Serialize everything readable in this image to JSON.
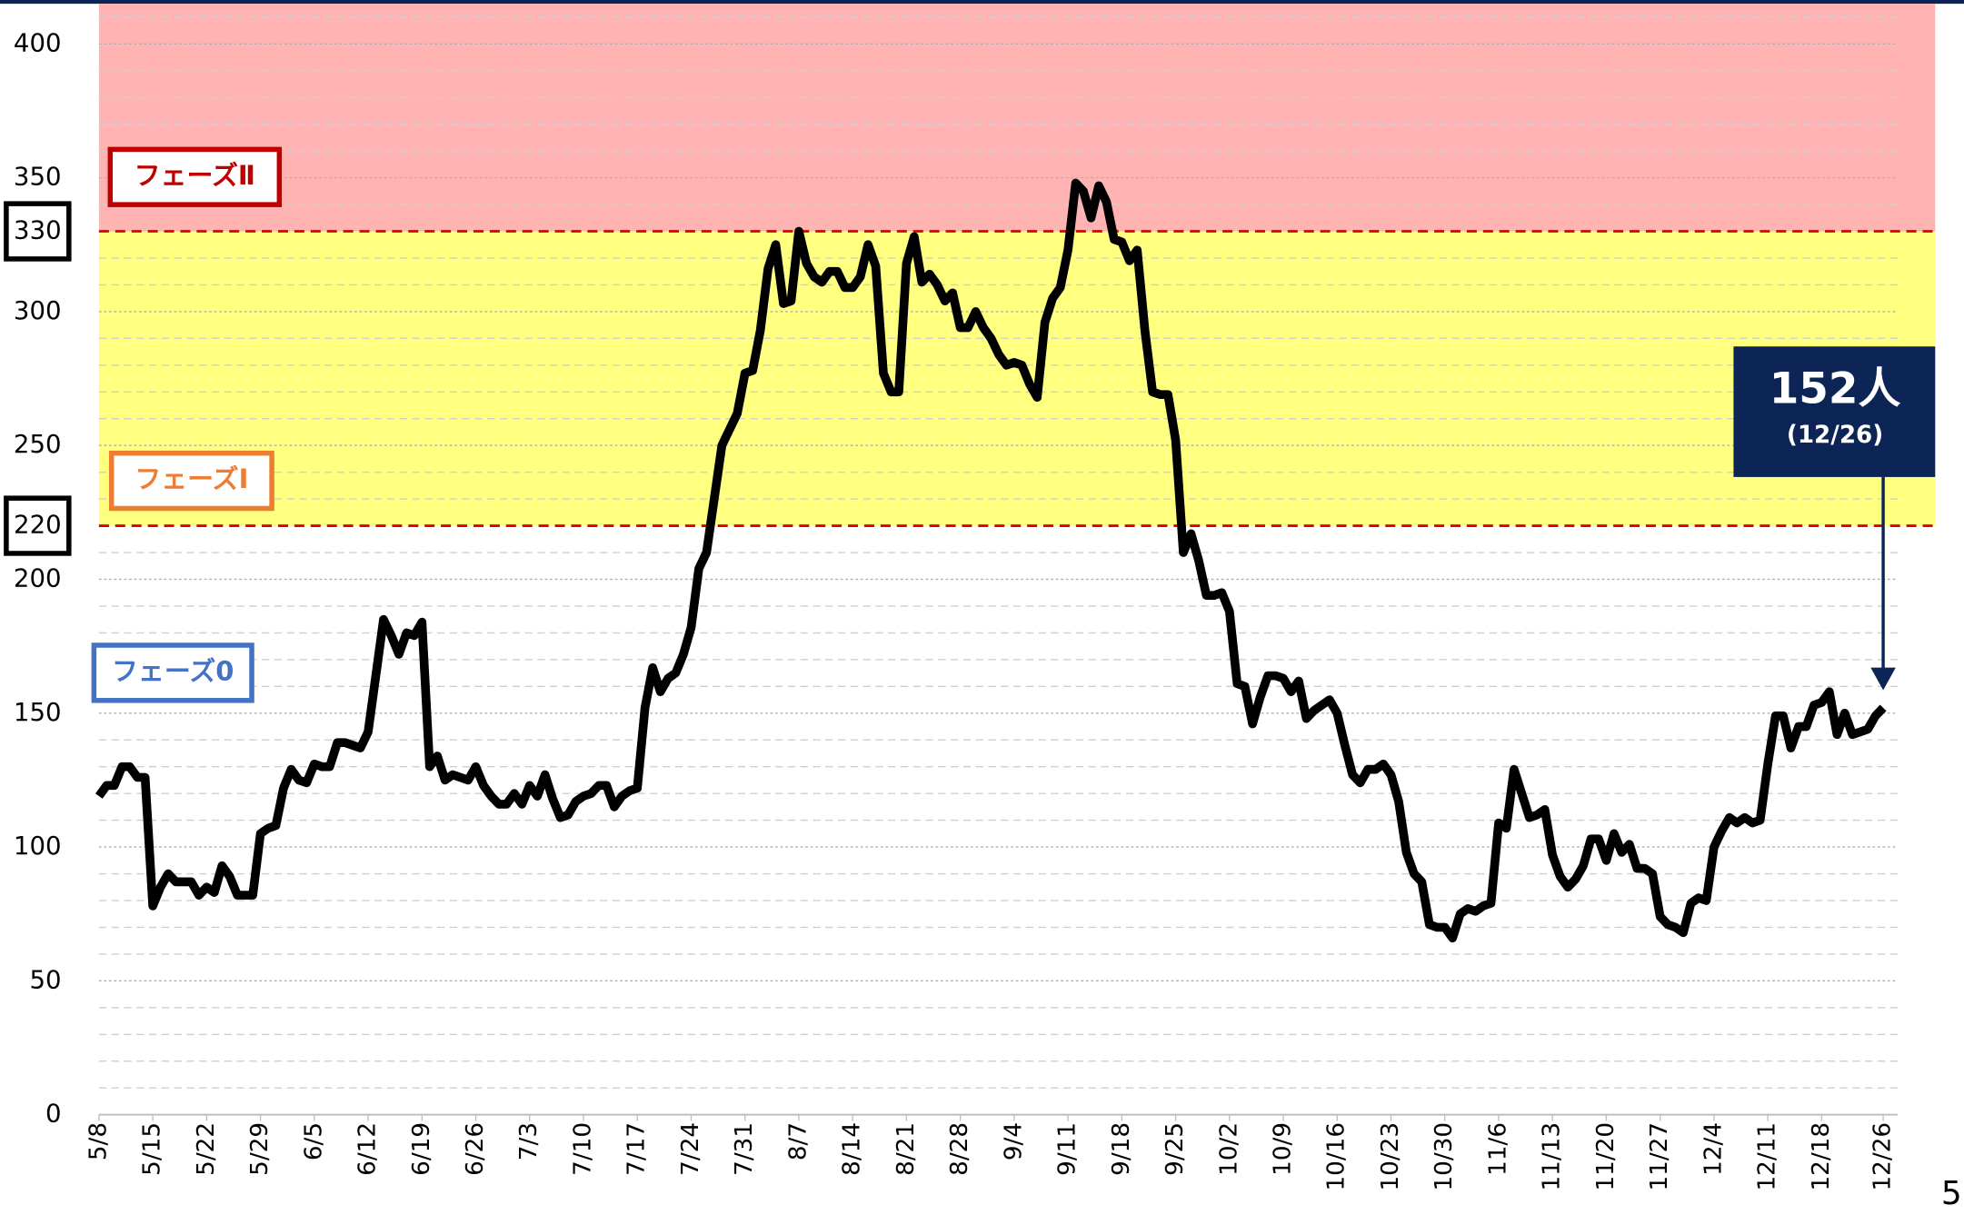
{
  "chart_data": {
    "type": "line",
    "categories": [
      "5/8",
      null,
      null,
      null,
      null,
      null,
      null,
      "5/15",
      null,
      null,
      null,
      null,
      null,
      null,
      "5/22",
      null,
      null,
      null,
      null,
      null,
      null,
      "5/29",
      null,
      null,
      null,
      null,
      null,
      null,
      "6/5",
      null,
      null,
      null,
      null,
      null,
      null,
      "6/12",
      null,
      null,
      null,
      null,
      null,
      null,
      "6/19",
      null,
      null,
      null,
      null,
      null,
      null,
      "6/26",
      null,
      null,
      null,
      null,
      null,
      null,
      "7/3",
      null,
      null,
      null,
      null,
      null,
      null,
      "7/10",
      null,
      null,
      null,
      null,
      null,
      null,
      "7/17",
      null,
      null,
      null,
      null,
      null,
      null,
      "7/24",
      null,
      null,
      null,
      null,
      null,
      null,
      "7/31",
      null,
      null,
      null,
      null,
      null,
      null,
      "8/7",
      null,
      null,
      null,
      null,
      null,
      null,
      "8/14",
      null,
      null,
      null,
      null,
      null,
      null,
      "8/21",
      null,
      null,
      null,
      null,
      null,
      null,
      "8/28",
      null,
      null,
      null,
      null,
      null,
      null,
      "9/4",
      null,
      null,
      null,
      null,
      null,
      null,
      "9/11",
      null,
      null,
      null,
      null,
      null,
      null,
      "9/18",
      null,
      null,
      null,
      null,
      null,
      null,
      "9/25",
      null,
      null,
      null,
      null,
      null,
      null,
      "10/2",
      null,
      null,
      null,
      null,
      null,
      null,
      "10/9",
      null,
      null,
      null,
      null,
      null,
      null,
      "10/16",
      null,
      null,
      null,
      null,
      null,
      null,
      "10/23",
      null,
      null,
      null,
      null,
      null,
      null,
      "10/30",
      null,
      null,
      null,
      null,
      null,
      null,
      "11/6",
      null,
      null,
      null,
      null,
      null,
      null,
      "11/13",
      null,
      null,
      null,
      null,
      null,
      null,
      "11/20",
      null,
      null,
      null,
      null,
      null,
      null,
      "11/27",
      null,
      null,
      null,
      null,
      null,
      null,
      "12/4",
      null,
      null,
      null,
      null,
      null,
      null,
      "12/11",
      null,
      null,
      null,
      null,
      null,
      null,
      "12/18",
      null,
      null,
      null,
      null,
      null,
      null,
      null,
      "12/26"
    ],
    "series": [
      {
        "color": "#000000",
        "values": [
          119,
          123,
          123,
          130,
          130,
          126,
          126,
          78,
          85,
          90,
          87,
          87,
          87,
          82,
          85,
          83,
          93,
          89,
          82,
          82,
          82,
          105,
          107,
          108,
          122,
          129,
          125,
          124,
          131,
          130,
          130,
          139,
          139,
          138,
          137,
          143,
          164,
          185,
          179,
          172,
          180,
          179,
          184,
          130,
          134,
          125,
          127,
          126,
          125,
          130,
          123,
          119,
          116,
          116,
          120,
          116,
          123,
          119,
          127,
          118,
          111,
          112,
          117,
          119,
          120,
          123,
          123,
          115,
          119,
          121,
          122,
          152,
          167,
          158,
          163,
          165,
          172,
          182,
          204,
          210,
          230,
          250,
          256,
          262,
          277,
          278,
          293,
          316,
          325,
          303,
          304,
          330,
          318,
          313,
          311,
          315,
          315,
          309,
          309,
          313,
          325,
          317,
          277,
          270,
          270,
          318,
          328,
          311,
          314,
          310,
          304,
          307,
          294,
          294,
          300,
          294,
          290,
          284,
          280,
          281,
          280,
          273,
          268,
          296,
          305,
          309,
          323,
          348,
          345,
          335,
          347,
          341,
          327,
          326,
          319,
          323,
          293,
          270,
          269,
          269,
          252,
          210,
          217,
          207,
          194,
          194,
          195,
          188,
          161,
          160,
          146,
          156,
          164,
          164,
          163,
          158,
          162,
          148,
          151,
          153,
          155,
          150,
          138,
          127,
          124,
          129,
          129,
          131,
          127,
          117,
          98,
          90,
          87,
          71,
          70,
          70,
          66,
          75,
          77,
          76,
          78,
          79,
          109,
          107,
          129,
          120,
          111,
          112,
          114,
          97,
          89,
          85,
          88,
          93,
          103,
          103,
          95,
          105,
          98,
          101,
          92,
          92,
          90,
          74,
          71,
          70,
          68,
          79,
          81,
          80,
          100,
          106,
          111,
          109,
          111,
          109,
          110,
          131,
          149,
          149,
          137,
          145,
          145,
          153,
          154,
          158,
          142,
          150,
          142,
          143,
          144,
          149,
          152
        ]
      }
    ],
    "ylim": [
      0,
      415
    ],
    "yticks": [
      0,
      50,
      100,
      150,
      200,
      250,
      300,
      350,
      400
    ],
    "minor_yticks": [
      10,
      20,
      30,
      40,
      60,
      70,
      80,
      90,
      110,
      120,
      130,
      140,
      160,
      170,
      180,
      190,
      210,
      230,
      240,
      260,
      270,
      280,
      290,
      310,
      320,
      340,
      360,
      370,
      380,
      390,
      410
    ],
    "grid": true,
    "bands": [
      {
        "name": "フェーズ0",
        "color": "#4472c4"
      },
      {
        "name": "フェーズⅠ",
        "from": 220,
        "color": "#ed7d31",
        "fill": "#ffff80"
      },
      {
        "name": "フェーズⅡ",
        "from": 330,
        "color": "#c00000",
        "fill": "#ffb3b3"
      }
    ],
    "annotation": {
      "text": "152人",
      "date": "(12/26)"
    },
    "page_number": "5"
  }
}
